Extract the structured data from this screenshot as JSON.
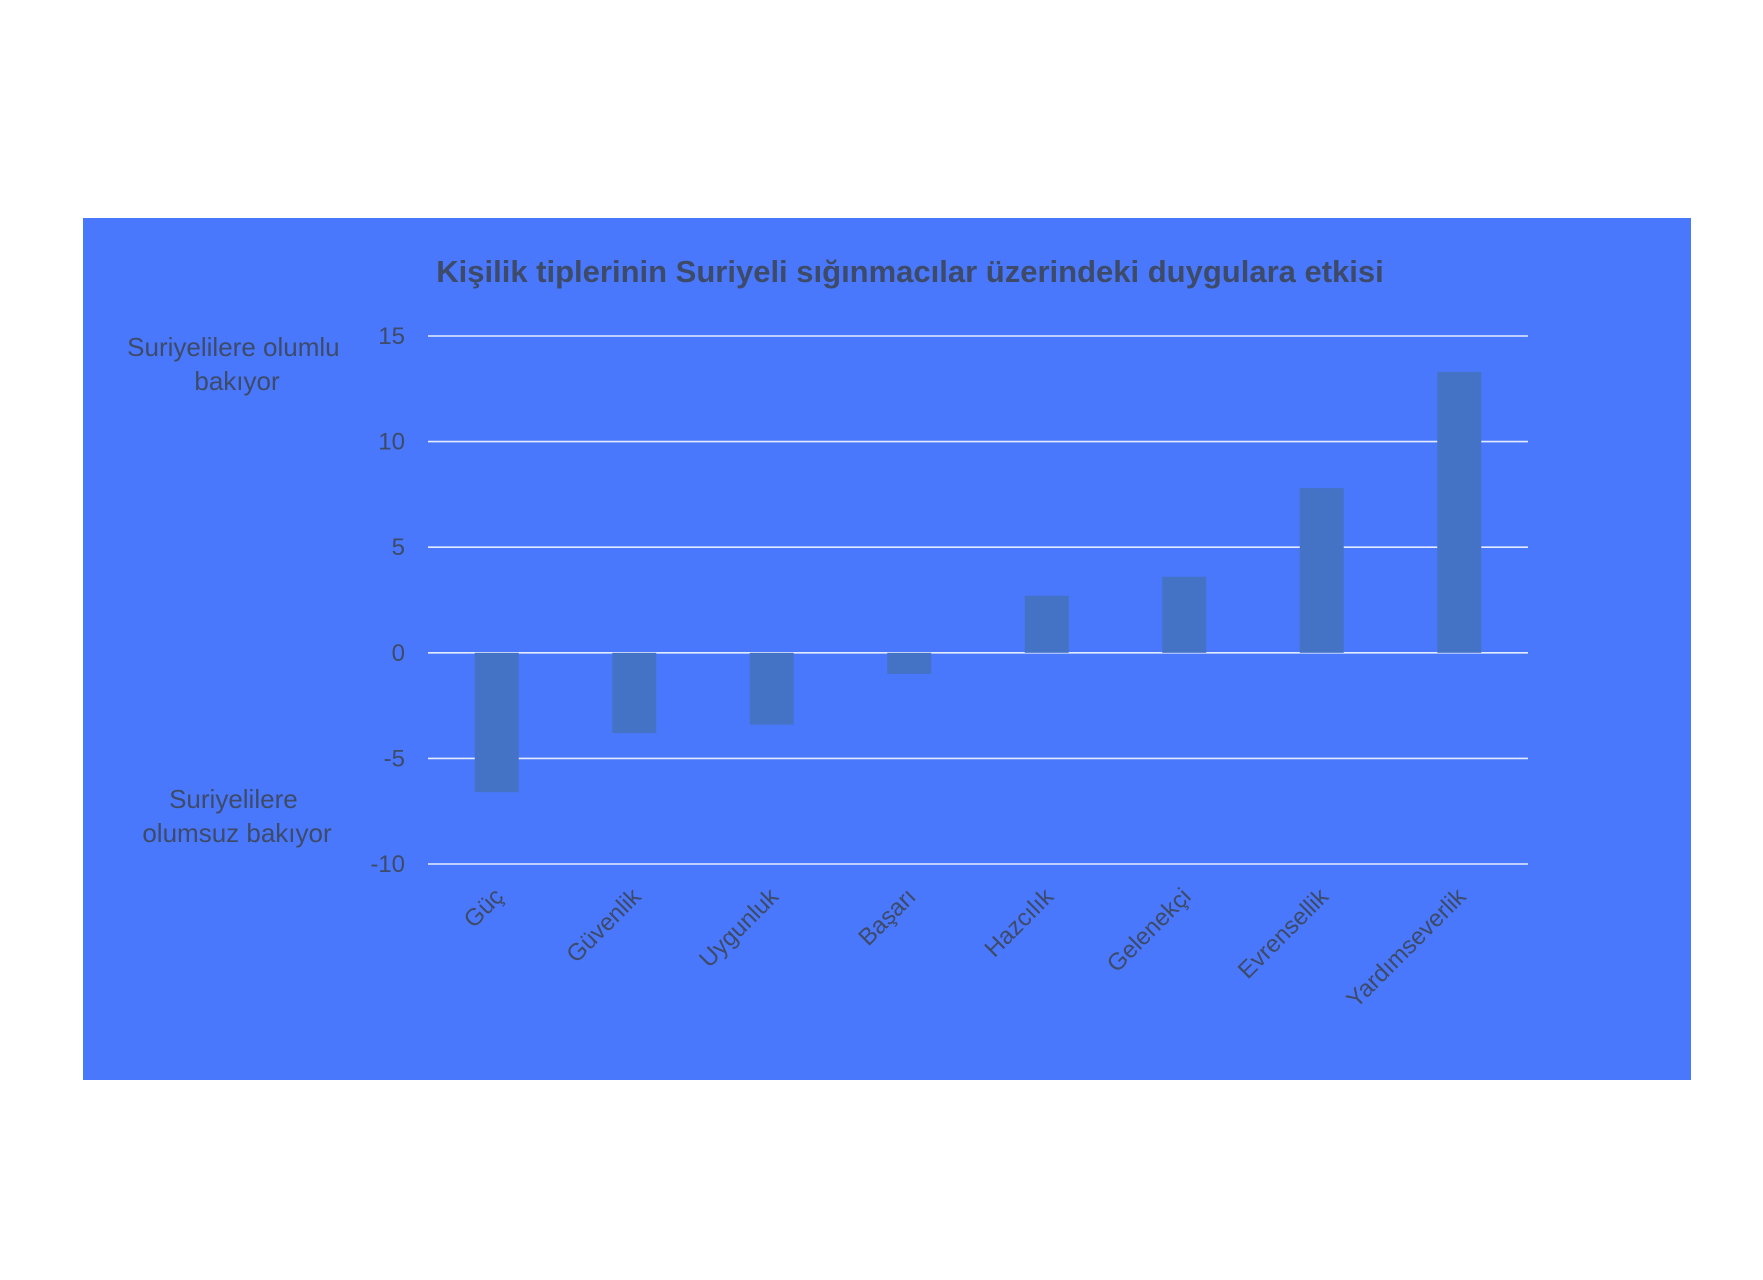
{
  "chart_data": {
    "type": "bar",
    "title": "Kişilik tiplerinin Suriyeli sığınmacılar üzerindeki duygulara etkisi",
    "categories": [
      "Güç",
      "Güvenlik",
      "Uygunluk",
      "Başarı",
      "Hazcılık",
      "Gelenekçi",
      "Evrensellik",
      "Yardımseverlik"
    ],
    "values": [
      -6.6,
      -3.8,
      -3.4,
      -1.0,
      2.7,
      3.6,
      7.8,
      13.3
    ],
    "ylim": [
      -10,
      15
    ],
    "yticks": [
      "15",
      "10",
      "5",
      "0",
      "-5",
      "-10"
    ],
    "ylabel_top": [
      "Suriyelilere olumlu",
      "bakıyor"
    ],
    "ylabel_bottom": [
      "Suriyelilere",
      "olumsuz bakıyor"
    ],
    "grid": true,
    "legend": "none",
    "colors": {
      "background": "#4a78fc",
      "bar": "#4472c4",
      "text": "#3d4a68",
      "grid": "#e4ebff"
    }
  }
}
